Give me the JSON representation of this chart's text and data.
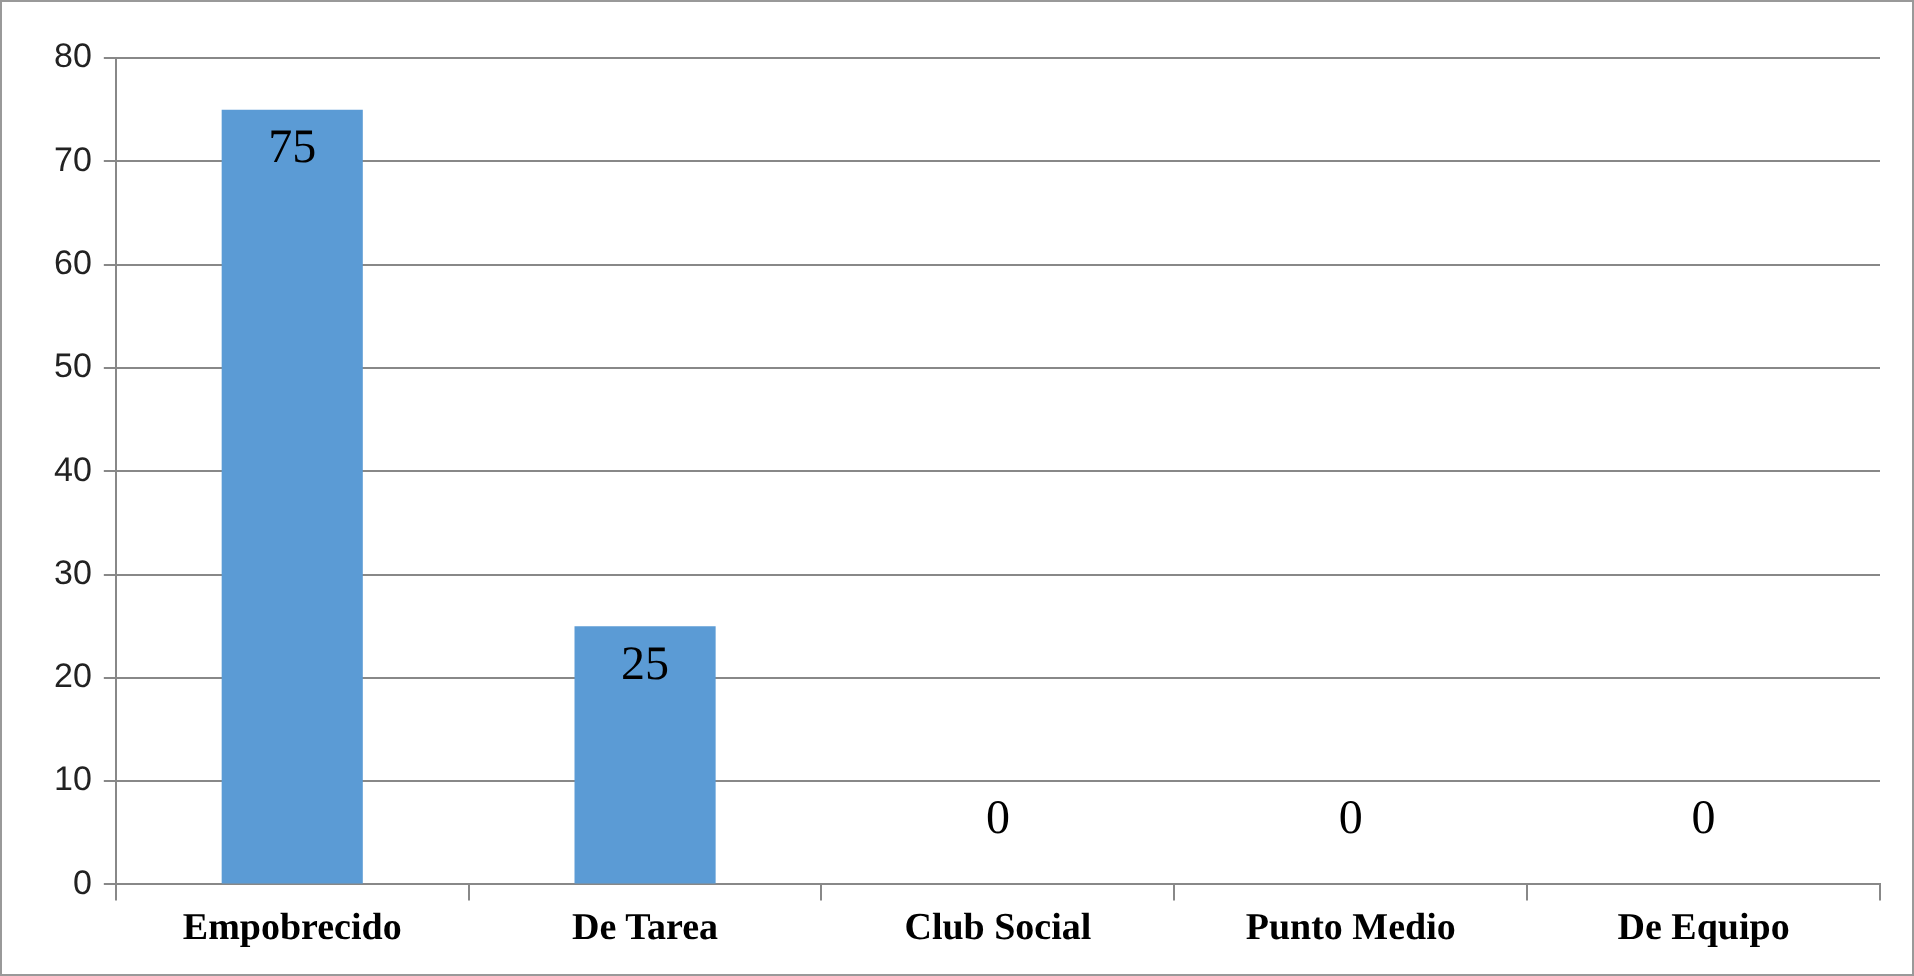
{
  "chart_data": {
    "type": "bar",
    "categories": [
      "Empobrecido",
      "De Tarea",
      "Club Social",
      "Punto Medio",
      "De Equipo"
    ],
    "values": [
      75,
      25,
      0,
      0,
      0
    ],
    "color": "#5b9bd5",
    "ylim": [
      0,
      80
    ],
    "yticks": [
      0,
      10,
      20,
      30,
      40,
      50,
      60,
      70,
      80
    ],
    "grid": "y",
    "legend": false,
    "data_labels": true
  }
}
